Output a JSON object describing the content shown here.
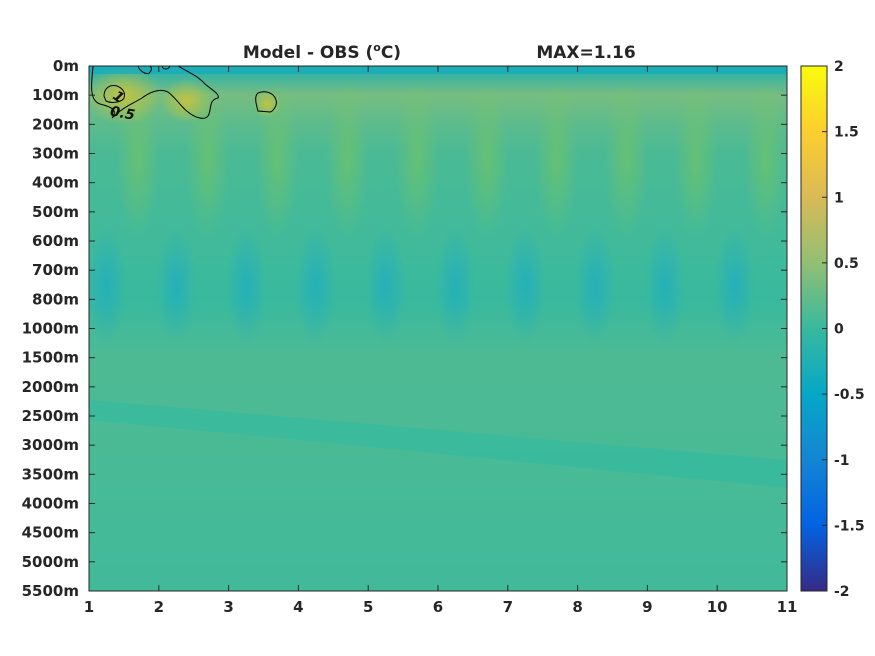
{
  "chart_data": {
    "type": "heatmap",
    "title_left": "Model - OBS (",
    "title_unit_sup": "o",
    "title_unit_end": "C)",
    "title_right": "MAX=1.16",
    "x": {
      "ticks": [
        1,
        2,
        3,
        4,
        5,
        6,
        7,
        8,
        9,
        10,
        11
      ],
      "lim": [
        1,
        11
      ]
    },
    "y": {
      "tick_labels": [
        "0m",
        "100m",
        "200m",
        "300m",
        "400m",
        "500m",
        "600m",
        "700m",
        "800m",
        "1000m",
        "1500m",
        "2000m",
        "2500m",
        "3000m",
        "3500m",
        "4000m",
        "4500m",
        "5000m",
        "5500m"
      ]
    },
    "colorbar": {
      "lim": [
        -2,
        2
      ],
      "ticks": [
        2,
        1.5,
        1,
        0.5,
        0,
        -0.5,
        -1,
        -1.5,
        -2
      ],
      "tick_labels": [
        "2",
        "1.5",
        "1",
        "0.5",
        "0",
        "-0.5",
        "-1",
        "-1.5",
        "-2"
      ],
      "colormap": "parula"
    },
    "field_description_levels": [
      {
        "depth": "0m",
        "value": -0.25
      },
      {
        "depth": "100m",
        "value": 0.35
      },
      {
        "depth": "200m",
        "value": 0.2
      },
      {
        "depth": "300m",
        "value": 0.1
      },
      {
        "depth": "600m",
        "value": 0.05
      },
      {
        "depth": "800m",
        "value": 0.0
      },
      {
        "depth": "1500m",
        "value": 0.12
      },
      {
        "depth": "3000m",
        "value": 0.1
      },
      {
        "depth": "5500m",
        "value": 0.05
      }
    ],
    "contours": [
      {
        "level": 0.5,
        "label": "0.5"
      },
      {
        "level": 1,
        "label": "1"
      }
    ]
  }
}
